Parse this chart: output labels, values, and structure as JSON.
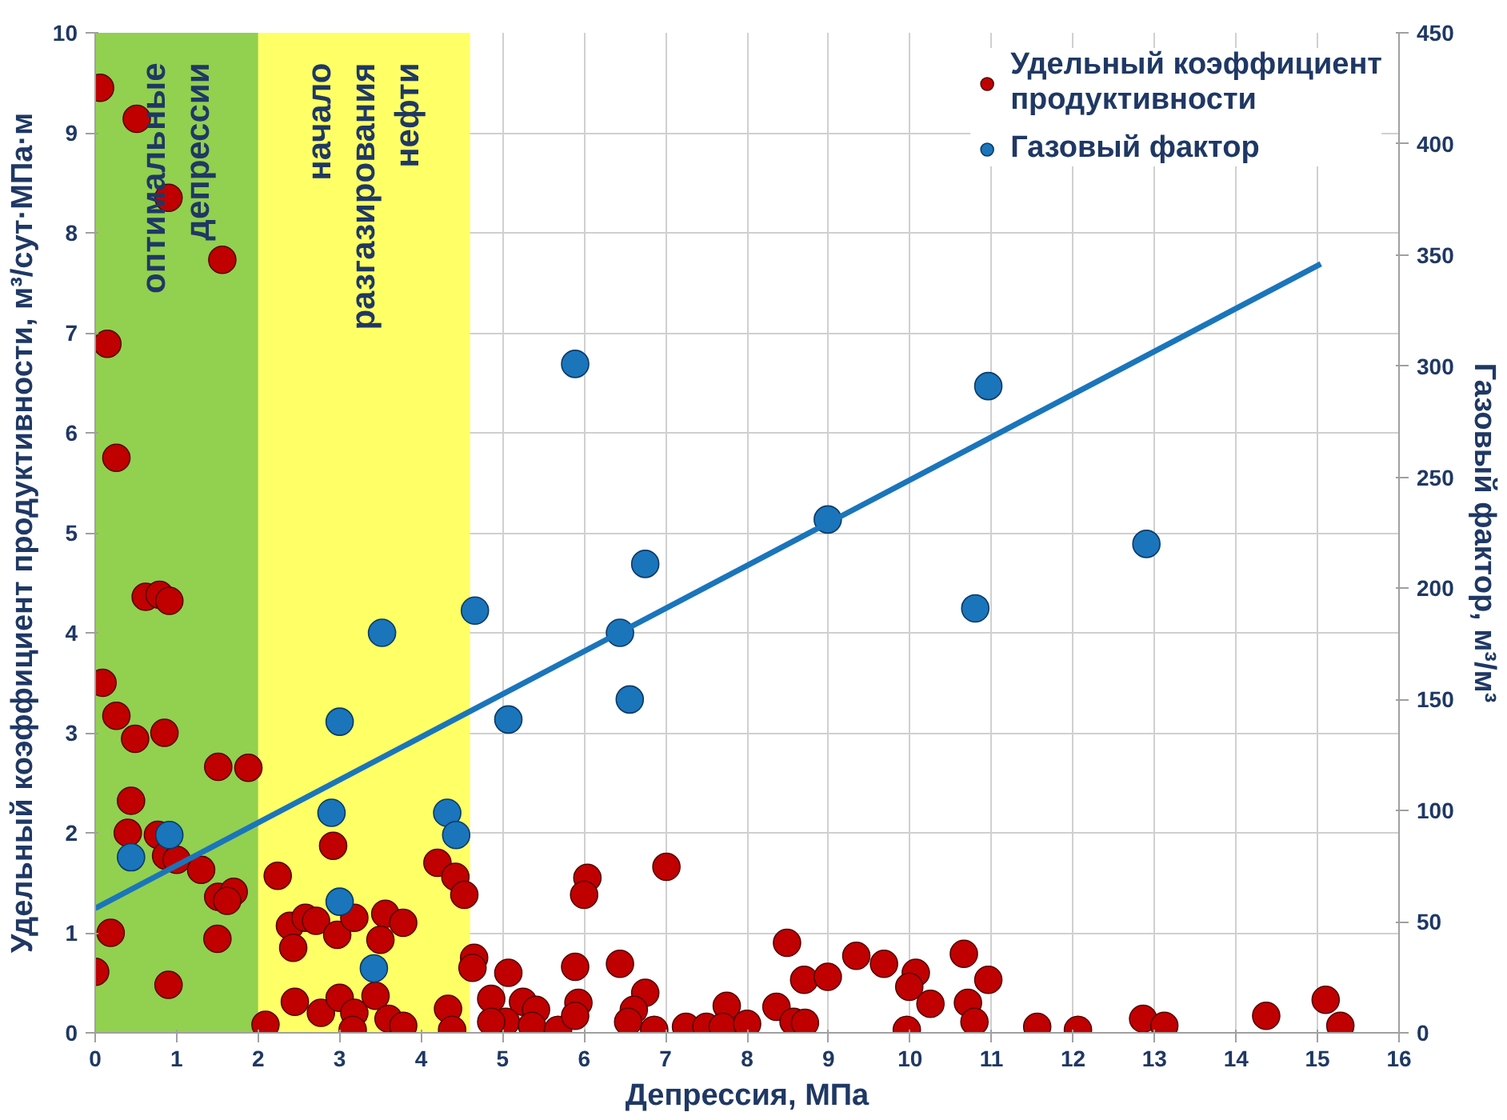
{
  "chart_data": {
    "type": "scatter",
    "xlabel": "Депрессия, МПа",
    "ylabel": "Удельный коэффициент продуктивности, м³/сут·МПа·м",
    "y2label": "Газовый фактор, м³/м³",
    "xlim": [
      0,
      16
    ],
    "xticks": [
      0,
      1,
      2,
      3,
      4,
      5,
      6,
      7,
      8,
      9,
      10,
      11,
      12,
      13,
      14,
      15,
      16
    ],
    "ylim": [
      0,
      10
    ],
    "yticks": [
      0,
      1,
      2,
      3,
      4,
      5,
      6,
      7,
      8,
      9,
      {
        "value": 10,
        "label": "10"
      }
    ],
    "y2lim": [
      0,
      450
    ],
    "y2ticks": [
      0,
      50,
      100,
      150,
      200,
      250,
      300,
      350,
      400,
      450
    ],
    "grid": true,
    "legend": "top right",
    "marker": "circle",
    "bands": [
      {
        "axis": "x",
        "from": 0,
        "to": 2,
        "label": "оптимальные\nдепрессии",
        "color": "#92d050"
      },
      {
        "axis": "x",
        "from": 2,
        "to": 4.6,
        "label": "начало\nразгазирования\nнефти",
        "color": "#ffff66"
      }
    ],
    "series": [
      {
        "name": "Удельный коэффициент продуктивности",
        "color": "#c00000",
        "x": [
          0.06,
          0.51,
          0.9,
          1.56,
          0.15,
          0.26,
          0.62,
          0.79,
          0.91,
          0.09,
          0.26,
          0.49,
          0.85,
          1.51,
          1.88,
          0.44,
          0.4,
          0.77,
          0.87,
          1.0,
          1.3,
          1.51,
          1.7,
          1.62,
          1.5,
          0.19,
          0.0,
          0.9,
          2.24,
          2.92,
          2.39,
          2.58,
          2.71,
          2.43,
          2.97,
          3.18,
          3.56,
          3.78,
          3.5,
          4.2,
          4.42,
          4.53,
          4.65,
          4.63,
          2.45,
          2.77,
          3.0,
          3.18,
          3.16,
          3.44,
          3.6,
          3.78,
          2.09,
          4.33,
          4.38,
          6.04,
          6.0,
          7.01,
          5.07,
          5.89,
          6.44,
          8.49,
          9.34,
          9.68,
          10.07,
          10.66,
          10.96,
          8.7,
          8.99,
          9.99,
          10.25,
          10.71,
          10.79,
          9.96,
          4.86,
          5.25,
          5.41,
          5.93,
          6.75,
          6.61,
          6.54,
          7.75,
          8.36,
          5.04,
          5.36,
          5.68,
          5.89,
          6.86,
          7.25,
          7.5,
          7.7,
          8.0,
          8.57,
          8.71,
          4.86,
          11.56,
          12.06,
          12.86,
          13.12,
          14.37,
          15.1,
          15.28
        ],
        "values": [
          9.45,
          9.14,
          8.35,
          7.73,
          6.89,
          5.75,
          4.36,
          4.38,
          4.32,
          3.5,
          3.17,
          2.94,
          3.0,
          2.66,
          2.65,
          2.32,
          2.0,
          1.98,
          1.77,
          1.73,
          1.63,
          1.36,
          1.41,
          1.32,
          0.94,
          1.0,
          0.61,
          0.48,
          1.57,
          1.87,
          1.07,
          1.15,
          1.12,
          0.85,
          0.98,
          1.15,
          1.19,
          1.1,
          0.93,
          1.7,
          1.56,
          1.38,
          0.75,
          0.65,
          0.31,
          0.2,
          0.35,
          0.2,
          0.03,
          0.37,
          0.14,
          0.07,
          0.08,
          0.24,
          0.03,
          1.55,
          1.38,
          1.66,
          0.6,
          0.66,
          0.69,
          0.9,
          0.77,
          0.69,
          0.6,
          0.79,
          0.53,
          0.53,
          0.56,
          0.46,
          0.29,
          0.3,
          0.11,
          0.03,
          0.34,
          0.31,
          0.23,
          0.3,
          0.4,
          0.23,
          0.11,
          0.27,
          0.26,
          0.11,
          0.07,
          0.03,
          0.17,
          0.03,
          0.06,
          0.06,
          0.06,
          0.09,
          0.11,
          0.1,
          0.11,
          0.06,
          0.03,
          0.14,
          0.07,
          0.17,
          0.33,
          0.07
        ]
      },
      {
        "name": "Газовый фактор",
        "color": "#1a75bb",
        "axis": "y2",
        "x": [
          3.0,
          3.52,
          2.9,
          3.0,
          3.42,
          4.66,
          4.32,
          4.43,
          0.44,
          0.91,
          5.89,
          10.96,
          8.99,
          6.75,
          6.44,
          6.56,
          5.07,
          10.8,
          12.9
        ],
        "values": [
          140,
          180,
          99,
          59,
          29,
          190,
          99,
          89,
          79,
          89,
          301,
          291,
          231,
          211,
          180,
          150,
          141,
          191,
          220
        ]
      },
      {
        "type": "line",
        "axis": "y2",
        "color": "#1a75bb",
        "marker": "none",
        "x": [
          0,
          15.04
        ],
        "values": [
          56,
          346
        ]
      }
    ]
  }
}
